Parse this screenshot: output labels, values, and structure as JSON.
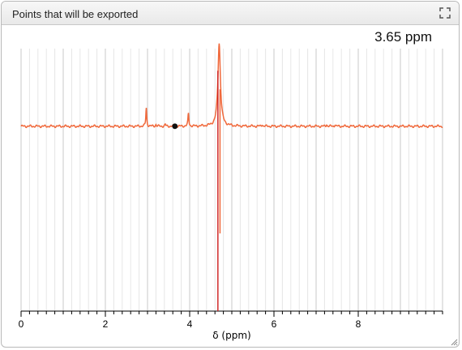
{
  "window": {
    "title": "Points that will be exported",
    "expand_icon": "expand-icon",
    "resize_icon": "resize-grip-icon"
  },
  "cursor_readout": {
    "value": "3.65 ppm"
  },
  "chart_data": {
    "type": "line",
    "xlabel": "δ (ppm)",
    "ylabel": "",
    "xlim": [
      0,
      10
    ],
    "ylim": [
      -1.0,
      0.42
    ],
    "x_ticks": [
      0,
      2,
      4,
      6,
      8
    ],
    "x_tick_labels": [
      "0",
      "2",
      "4",
      "6",
      "8"
    ],
    "grid": true,
    "series": [
      {
        "color": "#f0683a",
        "peaks": [
          {
            "x": 2.97,
            "height": 0.1
          },
          {
            "x": 3.2,
            "height": 0.01
          },
          {
            "x": 3.42,
            "height": 0.01
          },
          {
            "x": 3.97,
            "height": 0.07
          },
          {
            "x": 4.7,
            "height": 0.45,
            "dip": -0.58
          },
          {
            "x": 5.72,
            "height": 0.01
          },
          {
            "x": 7.25,
            "height": 0.01
          },
          {
            "x": 7.45,
            "height": 0.01
          }
        ]
      }
    ],
    "marker": {
      "x": 3.65,
      "y": 0.0,
      "color": "#111111"
    },
    "red_line": {
      "x": 4.67,
      "y_top": 0.3,
      "y_bottom": -1.0,
      "color": "#cc1a1a"
    }
  }
}
